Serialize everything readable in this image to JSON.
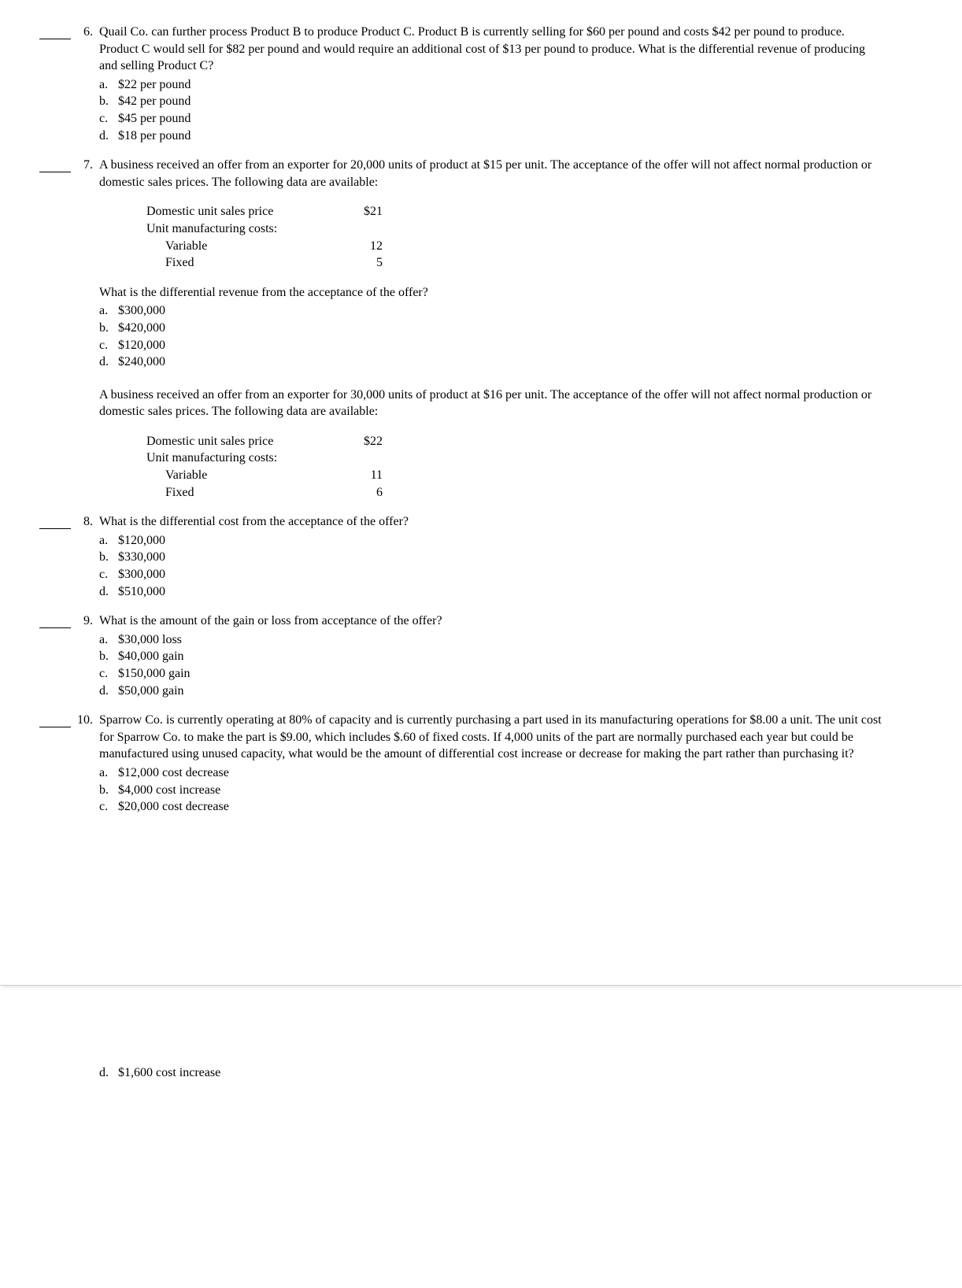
{
  "questions": {
    "q6": {
      "number": "6.",
      "text": "Quail Co. can further process Product B to produce Product C. Product B is currently selling for $60 per pound and costs $42 per pound to produce. Product C would sell for $82 per pound and would require an additional cost of $13 per pound to produce. What is the differential revenue of producing and selling Product C?",
      "options": {
        "a": "$22 per pound",
        "b": "$42 per pound",
        "c": "$45 per pound",
        "d": "$18 per pound"
      }
    },
    "q7": {
      "number": "7.",
      "text": "A business received an offer from an exporter for 20,000 units of product at $15 per unit. The acceptance of the offer will not affect normal production or domestic sales prices. The following data are available:",
      "data": {
        "domestic_label": "Domestic unit sales price",
        "domestic_value": "$21",
        "unit_mfg_label": "Unit manufacturing costs:",
        "variable_label": "Variable",
        "variable_value": "12",
        "fixed_label": "Fixed",
        "fixed_value": "5"
      },
      "followup": "What is the differential revenue from the acceptance of the offer?",
      "options": {
        "a": "$300,000",
        "b": "$420,000",
        "c": "$120,000",
        "d": "$240,000"
      }
    },
    "intro8": {
      "text": "A business received an offer from an exporter for 30,000 units of product at $16 per unit. The acceptance of the offer will not affect normal production or domestic sales prices. The following data are available:",
      "data": {
        "domestic_label": "Domestic unit sales price",
        "domestic_value": "$22",
        "unit_mfg_label": "Unit manufacturing costs:",
        "variable_label": "Variable",
        "variable_value": "11",
        "fixed_label": "Fixed",
        "fixed_value": "6"
      }
    },
    "q8": {
      "number": "8.",
      "text": "What is the differential cost from the acceptance of the offer?",
      "options": {
        "a": "$120,000",
        "b": "$330,000",
        "c": "$300,000",
        "d": "$510,000"
      }
    },
    "q9": {
      "number": "9.",
      "text": "What is the amount of the gain or loss from acceptance of the offer?",
      "options": {
        "a": "$30,000 loss",
        "b": "$40,000 gain",
        "c": "$150,000 gain",
        "d": "$50,000 gain"
      }
    },
    "q10": {
      "number": "10.",
      "text": "Sparrow Co. is currently operating at 80% of capacity and is currently purchasing a part used in its manufacturing operations for $8.00 a unit. The unit cost for Sparrow Co. to make the part is $9.00, which includes $.60 of fixed costs. If 4,000 units of the part are normally purchased each year but could be manufactured using unused capacity, what would be the amount of differential cost increase or decrease for making the part rather than purchasing it?",
      "options": {
        "a": "$12,000 cost decrease",
        "b": "$4,000 cost increase",
        "c": "$20,000 cost decrease",
        "d": "$1,600 cost increase"
      }
    }
  },
  "markers": {
    "a": "a.",
    "b": "b.",
    "c": "c.",
    "d": "d."
  }
}
